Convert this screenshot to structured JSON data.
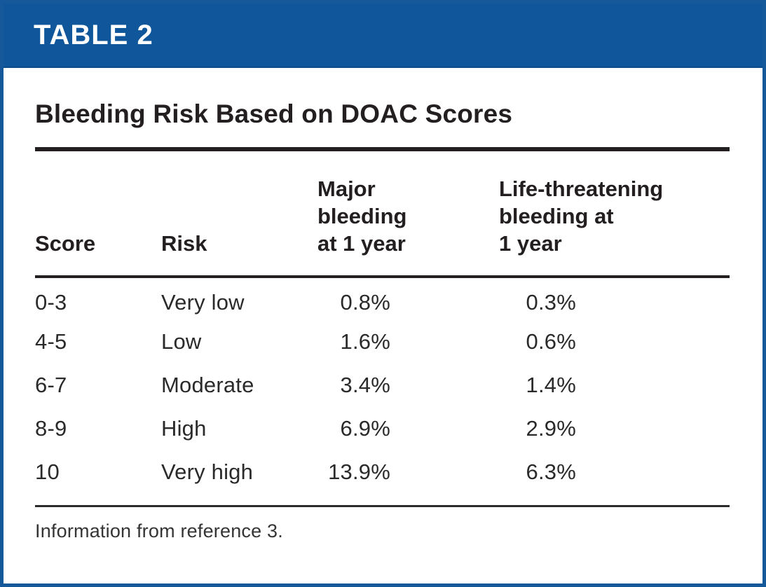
{
  "panel": {
    "kicker": "TABLE 2",
    "title": "Bleeding Risk Based on DOAC Scores",
    "footnote": "Information from reference 3."
  },
  "colors": {
    "band_blue": "#10569b",
    "border_blue": "#15599b",
    "rule_black": "#231f20",
    "kicker_text": "#ffffff"
  },
  "table": {
    "headers": {
      "score": "Score",
      "risk": "Risk",
      "major": "Major\nbleeding\nat 1 year",
      "life": "Life-threatening\nbleeding at\n1 year"
    },
    "rows": [
      {
        "score": "0-3",
        "risk": "Very low",
        "major": "0.8%",
        "life": "0.3%"
      },
      {
        "score": "4-5",
        "risk": "Low",
        "major": "1.6%",
        "life": "0.6%"
      },
      {
        "score": "6-7",
        "risk": "Moderate",
        "major": "3.4%",
        "life": "1.4%"
      },
      {
        "score": "8-9",
        "risk": "High",
        "major": "6.9%",
        "life": "2.9%"
      },
      {
        "score": "10",
        "risk": "Very high",
        "major": "13.9%",
        "life": "6.3%"
      }
    ]
  }
}
